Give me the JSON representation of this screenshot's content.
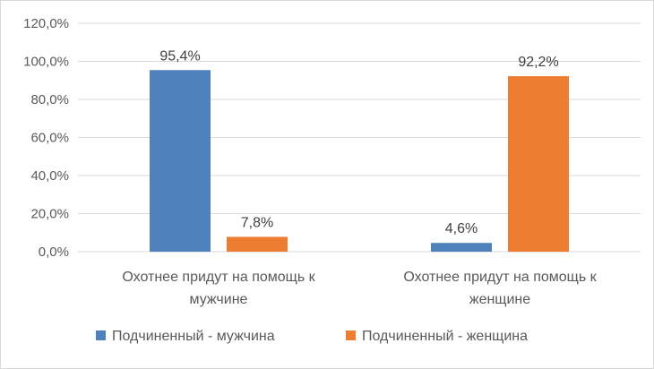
{
  "chart_data": {
    "type": "bar",
    "title": "",
    "xlabel": "",
    "ylabel": "",
    "categories": [
      [
        "Охотнее придут на помощь к",
        "мужчине"
      ],
      [
        "Охотнее придут на помощь к",
        "женщине"
      ]
    ],
    "series": [
      {
        "name": "Подчиненный - мужчина",
        "color": "#4f81bd",
        "values": [
          95.4,
          4.6
        ],
        "labels": [
          "95,4%",
          "4,6%"
        ]
      },
      {
        "name": "Подчиненный - женщина",
        "color": "#ed7d31",
        "values": [
          7.8,
          92.2
        ],
        "labels": [
          "7,8%",
          "92,2%"
        ]
      }
    ],
    "ylim": [
      0,
      120
    ],
    "yticks": [
      {
        "value": 0,
        "label": "0,0%"
      },
      {
        "value": 20,
        "label": "20,0%"
      },
      {
        "value": 40,
        "label": "40,0%"
      },
      {
        "value": 60,
        "label": "60,0%"
      },
      {
        "value": 80,
        "label": "80,0%"
      },
      {
        "value": 100,
        "label": "100,0%"
      },
      {
        "value": 120,
        "label": "120,0%"
      }
    ],
    "grid": true,
    "legend_position": "bottom"
  }
}
